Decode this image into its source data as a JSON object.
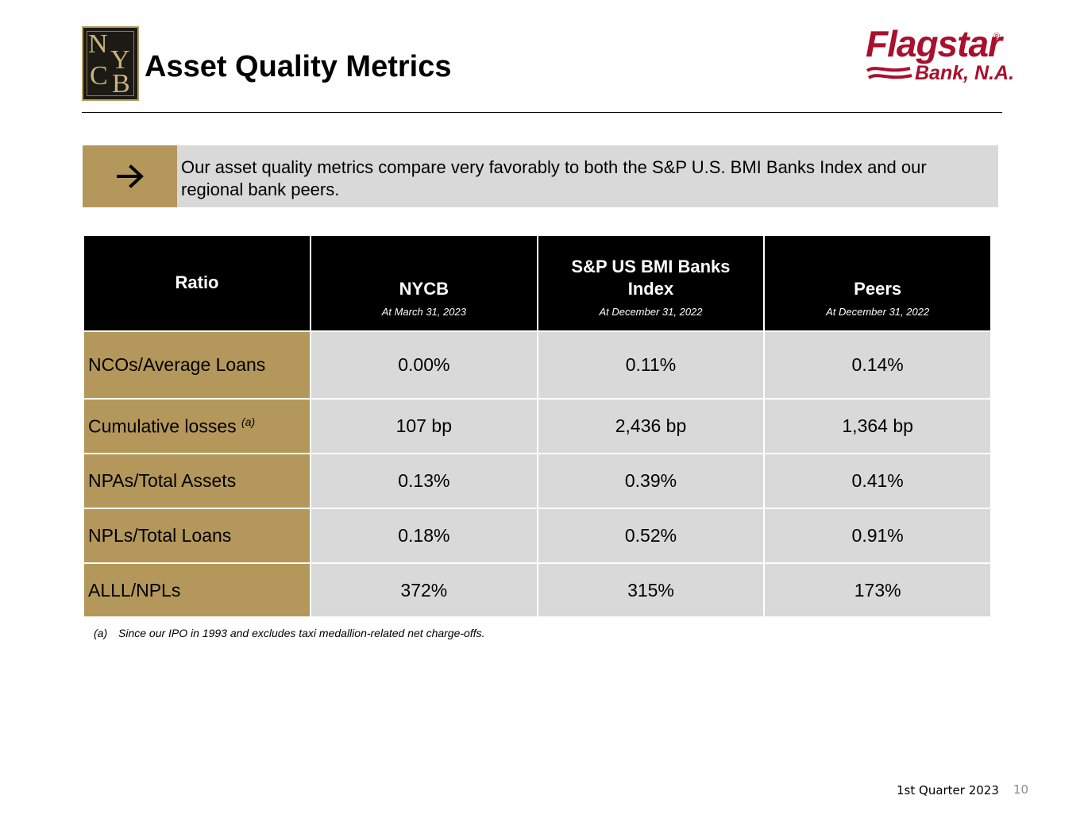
{
  "header": {
    "title": "Asset Quality Metrics",
    "left_logo": {
      "letters": [
        "N",
        "Y",
        "C",
        "B"
      ],
      "colors": {
        "bg": "#1c1a14",
        "gold": "#c9b27c"
      }
    },
    "right_logo": {
      "name": "Flagstar",
      "registered": "®",
      "subline": "Bank, N.A.",
      "color": "#a8102d"
    }
  },
  "callout": {
    "arrow_icon": "right-arrow-icon",
    "text": "Our asset quality metrics compare very favorably to both the S&P U.S. BMI Banks Index and our regional bank peers."
  },
  "table": {
    "columns": [
      {
        "name": "Ratio"
      },
      {
        "name": "NYCB",
        "subtitle": "At March 31, 2023"
      },
      {
        "name": "S&P US BMI Banks Index",
        "subtitle": "At December 31, 2022"
      },
      {
        "name": "Peers",
        "subtitle": "At December 31, 2022"
      }
    ],
    "rows": [
      {
        "label": "NCOs/Average Loans",
        "note": "",
        "values": [
          "0.00%",
          "0.11%",
          "0.14%"
        ]
      },
      {
        "label": "Cumulative losses",
        "note": "(a)",
        "values": [
          "107 bp",
          "2,436 bp",
          "1,364 bp"
        ]
      },
      {
        "label": "NPAs/Total Assets",
        "note": "",
        "values": [
          "0.13%",
          "0.39%",
          "0.41%"
        ]
      },
      {
        "label": "NPLs/Total Loans",
        "note": "",
        "values": [
          "0.18%",
          "0.52%",
          "0.91%"
        ]
      },
      {
        "label": "ALLL/NPLs",
        "note": "",
        "values": [
          "372%",
          "315%",
          "173%"
        ]
      }
    ]
  },
  "footnote": {
    "marker": "(a)",
    "text": "Since our IPO in 1993 and excludes taxi medallion-related net charge-offs."
  },
  "footer": {
    "quarter": "1st Quarter 2023",
    "page": "10"
  },
  "colors": {
    "gold": "#b4975a",
    "light_gray": "#d9d9d9",
    "header_black": "#000000"
  }
}
